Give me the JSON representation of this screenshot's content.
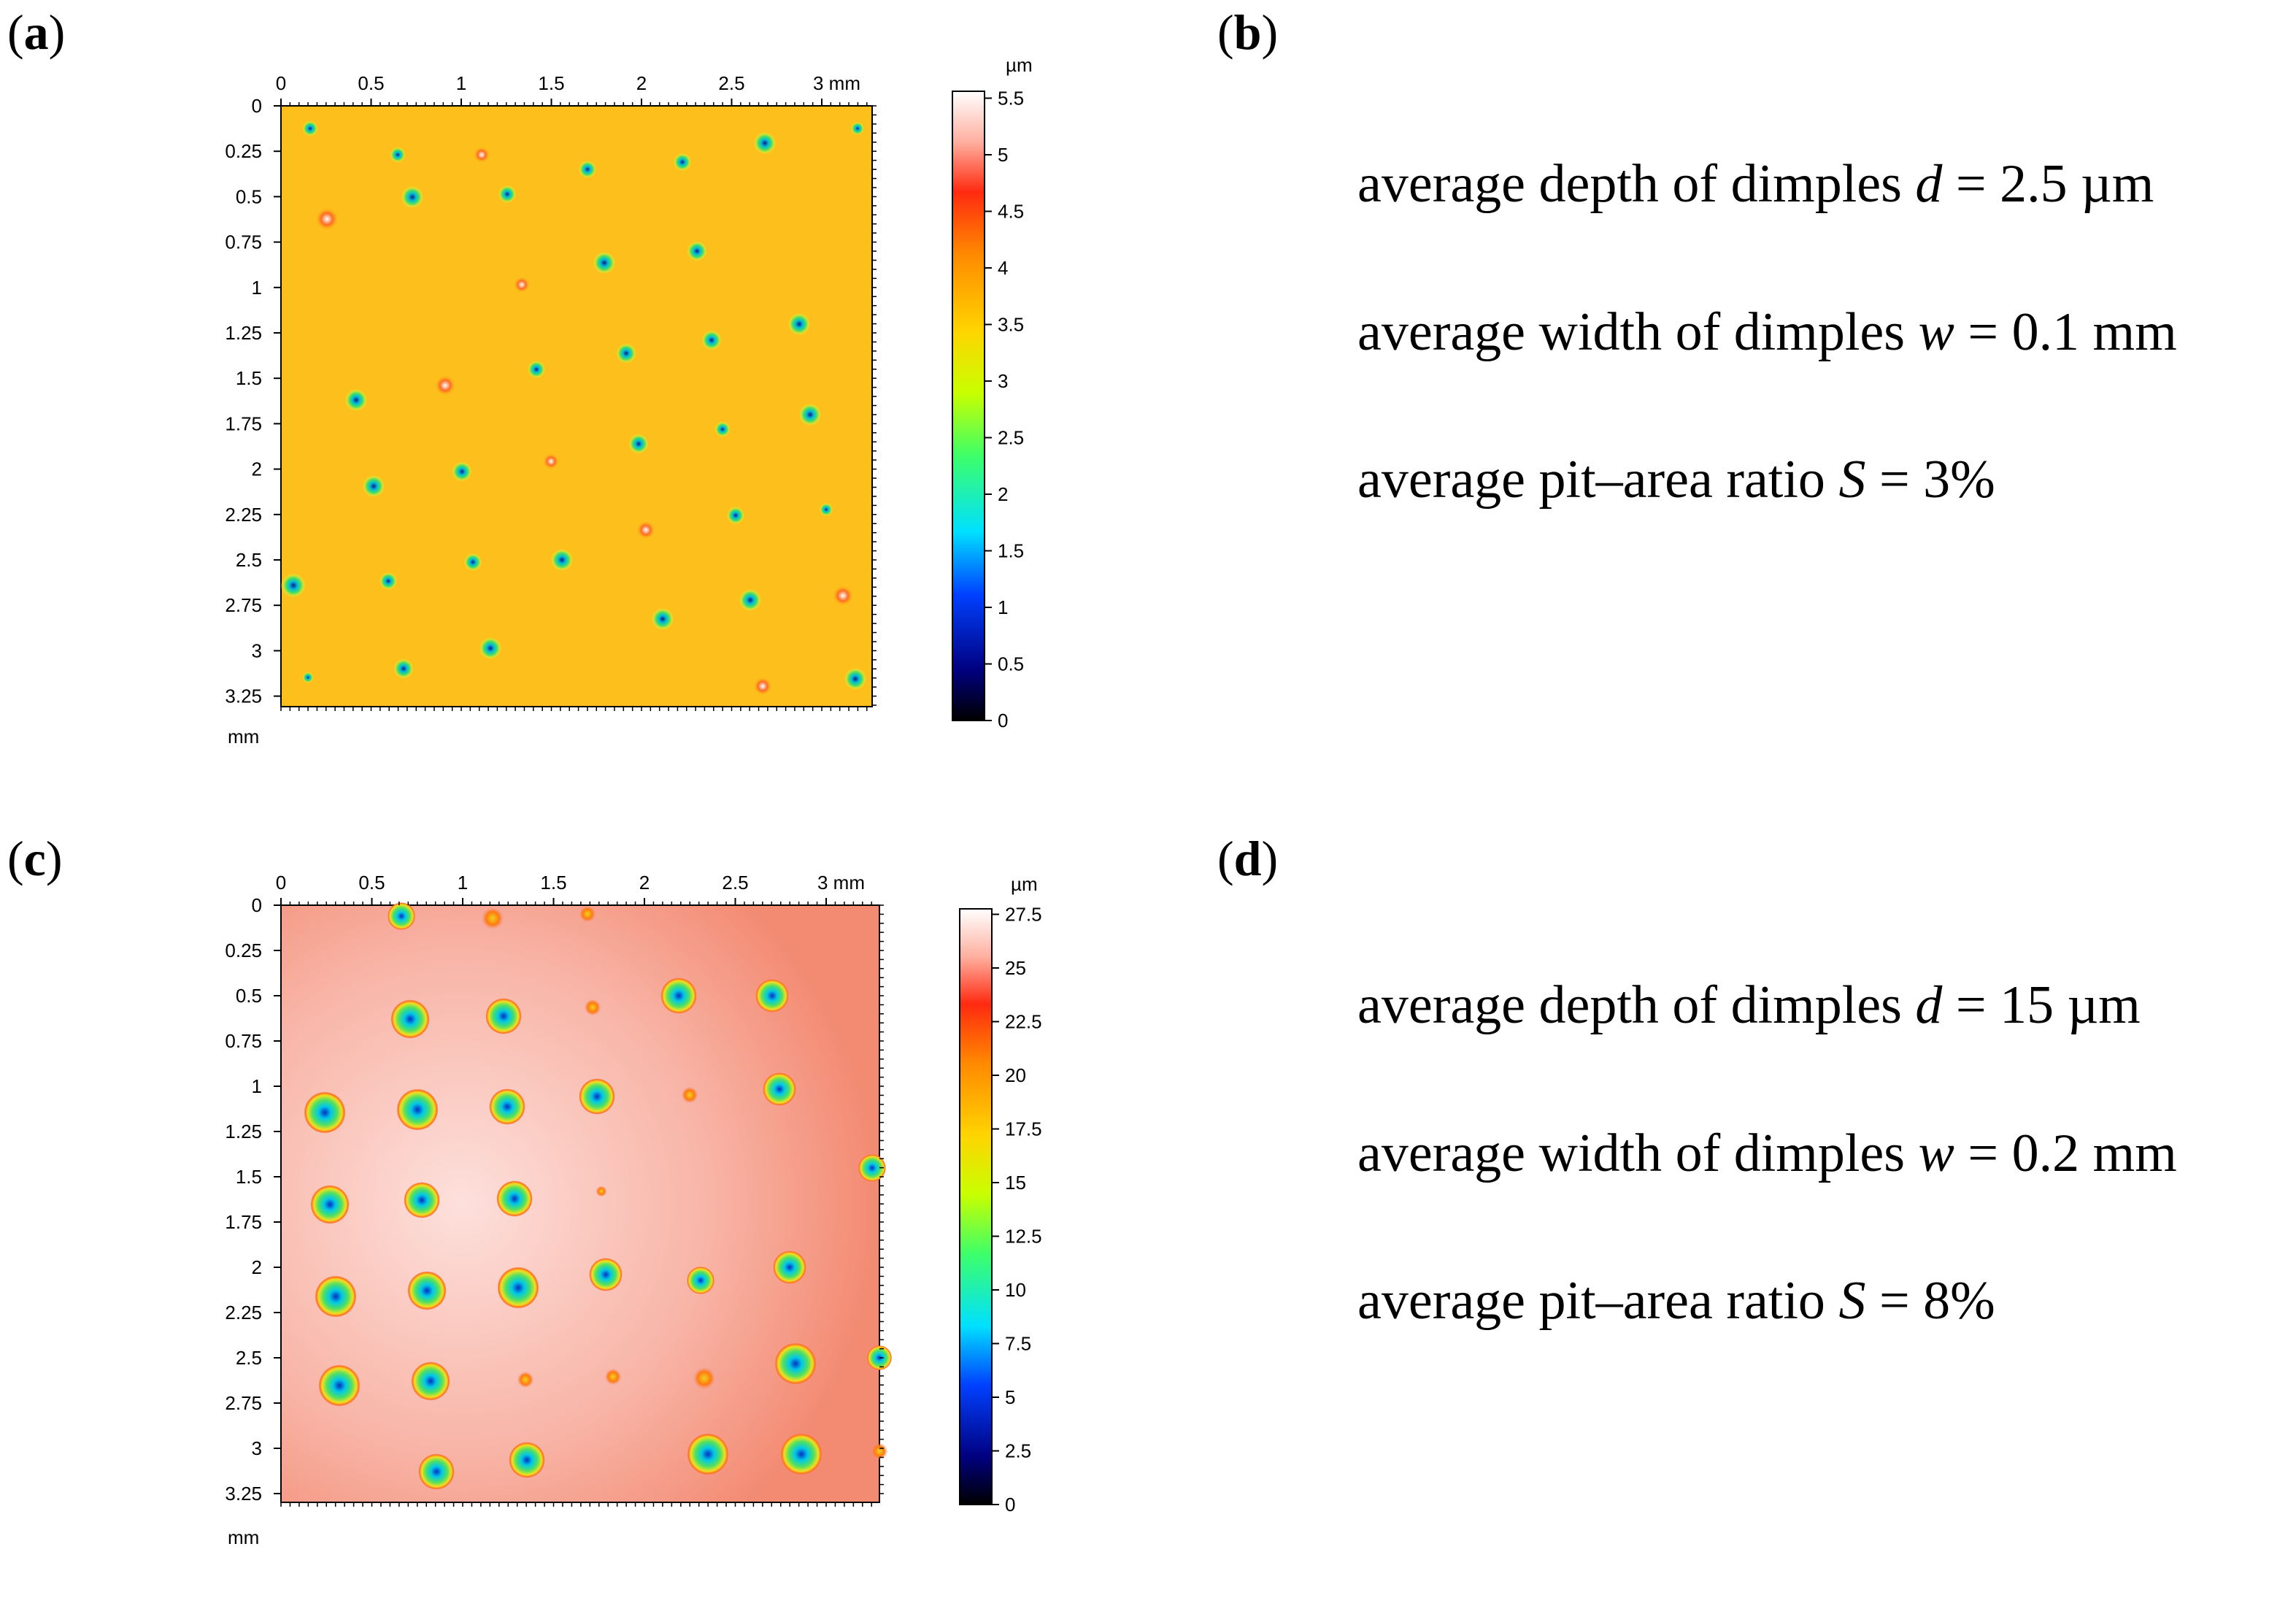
{
  "panel_labels": [
    "a",
    "b",
    "c",
    "d"
  ],
  "panel_a": {
    "x_ticks": [
      "0",
      "0.5",
      "1",
      "1.5",
      "2",
      "2.5",
      "3 mm"
    ],
    "y_ticks": [
      "0",
      "0.25",
      "0.5",
      "0.75",
      "1",
      "1.25",
      "1.5",
      "1.75",
      "2",
      "2.25",
      "2.5",
      "2.75",
      "3",
      "3.25"
    ],
    "axis_unit": "mm",
    "colorbar_unit": "µm",
    "colorbar_ticks": [
      "0",
      "0.5",
      "1",
      "1.5",
      "2",
      "2.5",
      "3",
      "3.5",
      "4",
      "4.5",
      "5",
      "5.5"
    ],
    "base_color": "#fdbf1b"
  },
  "panel_b": {
    "depth_prefix": "average depth of dimples ",
    "depth_var": "d",
    "depth_value": " = 2.5 µm",
    "width_prefix": "average width of dimples ",
    "width_var": "w",
    "width_value": " = 0.1 mm",
    "ratio_prefix": "average pit–area ratio ",
    "ratio_var": "S",
    "ratio_value": " = 3%"
  },
  "panel_c": {
    "x_ticks": [
      "0",
      "0.5",
      "1",
      "1.5",
      "2",
      "2.5",
      "3 mm"
    ],
    "y_ticks": [
      "0",
      "0.25",
      "0.5",
      "0.75",
      "1",
      "1.25",
      "1.5",
      "1.75",
      "2",
      "2.25",
      "2.5",
      "2.75",
      "3",
      "3.25"
    ],
    "axis_unit": "mm",
    "colorbar_unit": "µm",
    "colorbar_ticks": [
      "0",
      "2.5",
      "5",
      "7.5",
      "10",
      "12.5",
      "15",
      "17.5",
      "20",
      "22.5",
      "25",
      "27.5"
    ],
    "base_color": "#f7a898"
  },
  "panel_d": {
    "depth_prefix": "average depth of dimples ",
    "depth_var": "d",
    "depth_value": " = 15 µm",
    "width_prefix": "average width of dimples ",
    "width_var": "w",
    "width_value": " = 0.2 mm",
    "ratio_prefix": "average pit–area ratio ",
    "ratio_var": "S",
    "ratio_value": " = 8%"
  }
}
